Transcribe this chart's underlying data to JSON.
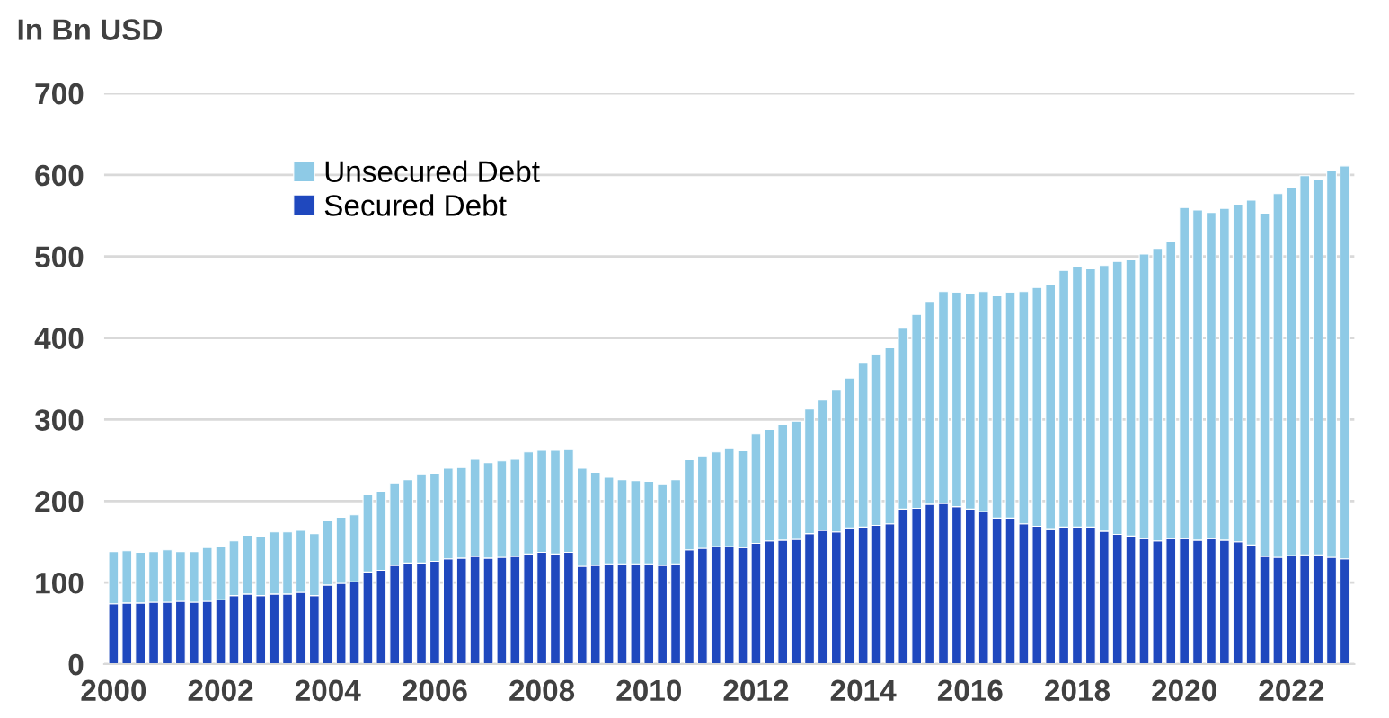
{
  "chart_data": {
    "type": "bar",
    "stacked": true,
    "ylabel": "In Bn USD",
    "categories": [
      "2000",
      null,
      null,
      null,
      null,
      null,
      null,
      null,
      "2002",
      null,
      null,
      null,
      null,
      null,
      null,
      null,
      "2004",
      null,
      null,
      null,
      null,
      null,
      null,
      null,
      "2006",
      null,
      null,
      null,
      null,
      null,
      null,
      null,
      "2008",
      null,
      null,
      null,
      null,
      null,
      null,
      null,
      "2010",
      null,
      null,
      null,
      null,
      null,
      null,
      null,
      "2012",
      null,
      null,
      null,
      null,
      null,
      null,
      null,
      "2014",
      null,
      null,
      null,
      null,
      null,
      null,
      null,
      "2016",
      null,
      null,
      null,
      null,
      null,
      null,
      null,
      "2018",
      null,
      null,
      null,
      null,
      null,
      null,
      null,
      "2020",
      null,
      null,
      null,
      null,
      null,
      null,
      null,
      "2022",
      null,
      null,
      null,
      null
    ],
    "series": [
      {
        "name": "Secured Debt",
        "color": "#1f48be",
        "values": [
          74,
          75,
          75,
          76,
          76,
          77,
          76,
          77,
          79,
          84,
          86,
          84,
          86,
          86,
          88,
          84,
          97,
          99,
          101,
          113,
          115,
          121,
          124,
          124,
          126,
          129,
          130,
          132,
          130,
          131,
          132,
          135,
          137,
          135,
          137,
          120,
          121,
          123,
          123,
          123,
          123,
          121,
          123,
          140,
          142,
          144,
          144,
          143,
          148,
          151,
          152,
          153,
          160,
          164,
          162,
          167,
          168,
          170,
          172,
          190,
          191,
          196,
          197,
          193,
          190,
          187,
          179,
          179,
          172,
          169,
          166,
          168,
          168,
          168,
          163,
          159,
          157,
          154,
          151,
          154,
          154,
          152,
          154,
          152,
          150,
          146,
          132,
          131,
          133,
          134,
          134,
          131,
          129
        ]
      },
      {
        "name": "Unsecured Debt",
        "color": "#8ecae6",
        "values": [
          64,
          64,
          62,
          62,
          64,
          61,
          62,
          66,
          65,
          67,
          72,
          73,
          76,
          76,
          76,
          76,
          79,
          81,
          82,
          95,
          97,
          101,
          102,
          109,
          108,
          111,
          112,
          120,
          117,
          118,
          120,
          125,
          126,
          128,
          127,
          120,
          114,
          106,
          103,
          102,
          101,
          100,
          103,
          111,
          113,
          116,
          121,
          119,
          134,
          137,
          142,
          145,
          153,
          160,
          174,
          184,
          201,
          210,
          216,
          222,
          238,
          248,
          260,
          263,
          264,
          270,
          273,
          277,
          285,
          293,
          300,
          315,
          319,
          317,
          326,
          335,
          339,
          349,
          359,
          364,
          406,
          405,
          400,
          407,
          414,
          423,
          421,
          446,
          452,
          465,
          461,
          475,
          482
        ]
      }
    ],
    "ylim": [
      0,
      700
    ],
    "yticks": [
      0,
      100,
      200,
      300,
      400,
      500,
      600,
      700
    ],
    "grid": "y",
    "legend": "top left"
  }
}
